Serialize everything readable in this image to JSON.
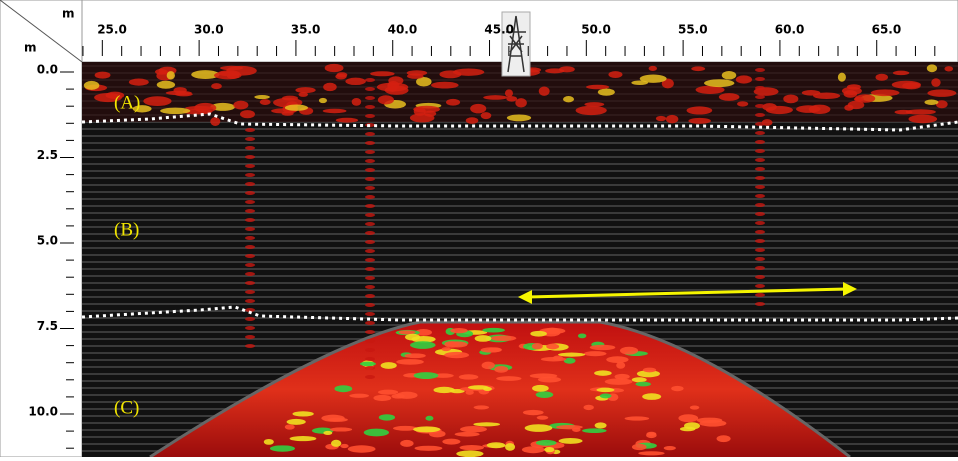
{
  "axes": {
    "x_unit": "m",
    "y_unit": "m",
    "x_ticks": [
      "25.0",
      "30.0",
      "35.0",
      "40.0",
      "45.0",
      "50.0",
      "55.0",
      "60.0",
      "65.0"
    ],
    "y_ticks": [
      "0.0",
      "2.5",
      "5.0",
      "7.5",
      "10.0"
    ]
  },
  "layers": [
    {
      "label": "(A)"
    },
    {
      "label": "(B)"
    },
    {
      "label": "(C)"
    }
  ]
}
